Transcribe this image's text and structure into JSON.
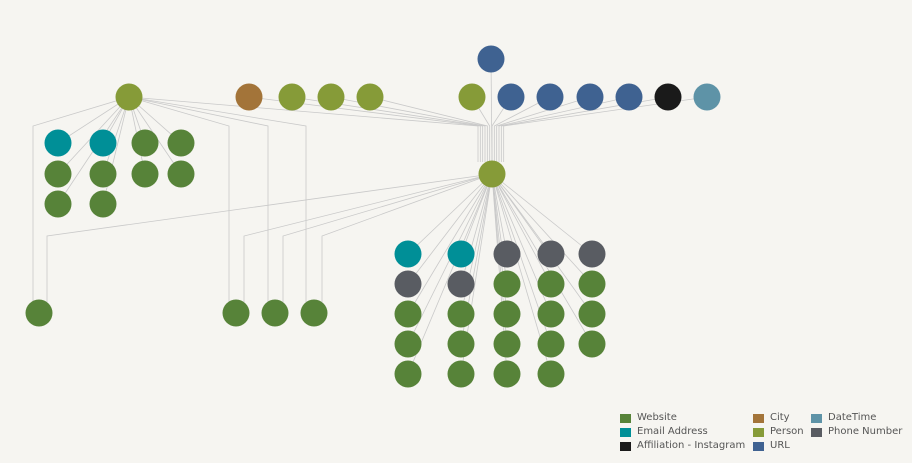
{
  "colors": {
    "website": "#578339",
    "email": "#008f97",
    "affiliation": "#1a1a1a",
    "city": "#a37439",
    "person": "#869b38",
    "url": "#3f6291",
    "datetime": "#5e93a7",
    "phone": "#595c62",
    "edge": "#c9c9c9"
  },
  "legend": [
    {
      "label": "Website",
      "type": "website"
    },
    {
      "label": "Email Address",
      "type": "email"
    },
    {
      "label": "Affiliation - Instagram",
      "type": "affiliation"
    },
    {
      "label": "City",
      "type": "city"
    },
    {
      "label": "Person",
      "type": "person"
    },
    {
      "label": "URL",
      "type": "url"
    },
    {
      "label": "DateTime",
      "type": "datetime"
    },
    {
      "label": "Phone Number",
      "type": "phone"
    }
  ],
  "graph": {
    "top_entity": {
      "type": "url"
    },
    "top_row": [
      {
        "type": "person",
        "icon": "person-node-left-hub"
      },
      {
        "type": "city"
      },
      {
        "type": "person"
      },
      {
        "type": "person"
      },
      {
        "type": "person"
      },
      {
        "type": "person"
      },
      {
        "type": "url"
      },
      {
        "type": "url"
      },
      {
        "type": "url"
      },
      {
        "type": "url"
      },
      {
        "type": "affiliation"
      },
      {
        "type": "datetime"
      }
    ],
    "central_hub": {
      "type": "person"
    },
    "left_cluster": [
      "email",
      "email",
      "website",
      "website",
      "website",
      "website",
      "website",
      "website",
      "website",
      "website"
    ],
    "bottom_left_nodes": [
      "website",
      "website",
      "website",
      "website"
    ],
    "central_cluster": [
      [
        "email",
        "phone",
        "website",
        "website",
        "website"
      ],
      [
        "email",
        "phone",
        "website",
        "website",
        "website"
      ],
      [
        "phone",
        "website",
        "website",
        "website",
        "website"
      ],
      [
        "phone",
        "website",
        "website",
        "website",
        "website"
      ],
      [
        "phone",
        "website",
        "website",
        "website"
      ]
    ]
  }
}
